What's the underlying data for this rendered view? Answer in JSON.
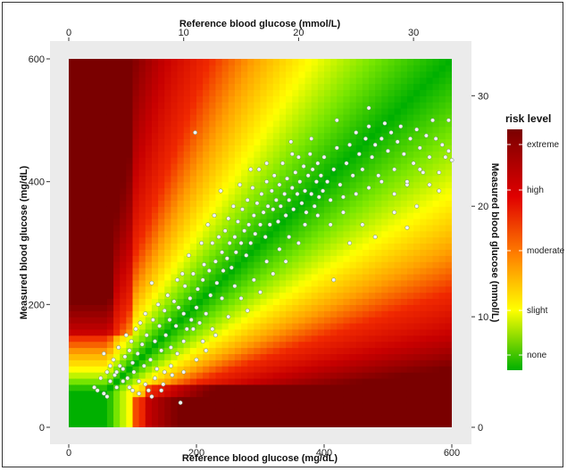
{
  "chart_data": {
    "type": "scatter",
    "title": "",
    "xlabel": "Reference blood glucose (mg/dL)",
    "ylabel": "Measured blood glucose (mg/dL)",
    "x2label": "Reference blood glucose (mmol/L)",
    "y2label": "Measured blood glucose (mmol/L)",
    "xlim": [
      0,
      600
    ],
    "ylim": [
      0,
      600
    ],
    "x_ticks": [
      0,
      200,
      400,
      600
    ],
    "y_ticks": [
      0,
      200,
      400,
      600
    ],
    "x2_ticks": [
      0,
      10,
      20,
      30
    ],
    "y2_ticks": [
      0,
      10,
      20,
      30
    ],
    "grid": false,
    "background": "surveillance error grid risk map (green = none, red = high, dark red = extreme)",
    "legend": {
      "title": "risk level",
      "position": "right",
      "labels": [
        "extreme",
        "high",
        "moderate",
        "slight",
        "none"
      ],
      "colors": [
        "#7a0000",
        "#e00000",
        "#ff8000",
        "#ffff00",
        "#00b000"
      ]
    },
    "point_color": "#f2f2f2",
    "points": [
      [
        40,
        65
      ],
      [
        45,
        60
      ],
      [
        50,
        80
      ],
      [
        55,
        120
      ],
      [
        55,
        55
      ],
      [
        60,
        50
      ],
      [
        60,
        90
      ],
      [
        65,
        75
      ],
      [
        70,
        110
      ],
      [
        72,
        85
      ],
      [
        75,
        65
      ],
      [
        78,
        130
      ],
      [
        80,
        100
      ],
      [
        85,
        95
      ],
      [
        88,
        115
      ],
      [
        90,
        150
      ],
      [
        92,
        80
      ],
      [
        95,
        125
      ],
      [
        98,
        140
      ],
      [
        100,
        105
      ],
      [
        100,
        60
      ],
      [
        102,
        90
      ],
      [
        105,
        160
      ],
      [
        108,
        120
      ],
      [
        110,
        75
      ],
      [
        112,
        170
      ],
      [
        115,
        135
      ],
      [
        118,
        100
      ],
      [
        120,
        185
      ],
      [
        122,
        150
      ],
      [
        125,
        60
      ],
      [
        128,
        110
      ],
      [
        130,
        235
      ],
      [
        132,
        175
      ],
      [
        135,
        140
      ],
      [
        138,
        95
      ],
      [
        140,
        200
      ],
      [
        142,
        165
      ],
      [
        145,
        125
      ],
      [
        148,
        70
      ],
      [
        150,
        190
      ],
      [
        152,
        150
      ],
      [
        155,
        215
      ],
      [
        158,
        175
      ],
      [
        160,
        130
      ],
      [
        162,
        85
      ],
      [
        165,
        205
      ],
      [
        168,
        165
      ],
      [
        170,
        240
      ],
      [
        172,
        195
      ],
      [
        175,
        40
      ],
      [
        178,
        250
      ],
      [
        180,
        185
      ],
      [
        182,
        230
      ],
      [
        185,
        160
      ],
      [
        188,
        280
      ],
      [
        190,
        210
      ],
      [
        192,
        175
      ],
      [
        195,
        250
      ],
      [
        198,
        480
      ],
      [
        200,
        195
      ],
      [
        202,
        225
      ],
      [
        205,
        170
      ],
      [
        208,
        300
      ],
      [
        210,
        240
      ],
      [
        212,
        265
      ],
      [
        215,
        185
      ],
      [
        218,
        330
      ],
      [
        220,
        255
      ],
      [
        222,
        215
      ],
      [
        225,
        300
      ],
      [
        228,
        345
      ],
      [
        230,
        270
      ],
      [
        232,
        235
      ],
      [
        235,
        310
      ],
      [
        238,
        385
      ],
      [
        240,
        285
      ],
      [
        242,
        255
      ],
      [
        245,
        320
      ],
      [
        248,
        275
      ],
      [
        250,
        340
      ],
      [
        252,
        300
      ],
      [
        255,
        260
      ],
      [
        258,
        360
      ],
      [
        260,
        310
      ],
      [
        262,
        285
      ],
      [
        265,
        335
      ],
      [
        268,
        395
      ],
      [
        270,
        300
      ],
      [
        272,
        355
      ],
      [
        275,
        320
      ],
      [
        278,
        280
      ],
      [
        280,
        370
      ],
      [
        282,
        330
      ],
      [
        285,
        300
      ],
      [
        288,
        390
      ],
      [
        290,
        345
      ],
      [
        292,
        315
      ],
      [
        295,
        365
      ],
      [
        298,
        420
      ],
      [
        300,
        330
      ],
      [
        302,
        380
      ],
      [
        305,
        350
      ],
      [
        308,
        310
      ],
      [
        310,
        400
      ],
      [
        312,
        360
      ],
      [
        315,
        330
      ],
      [
        318,
        385
      ],
      [
        320,
        355
      ],
      [
        322,
        410
      ],
      [
        325,
        370
      ],
      [
        328,
        335
      ],
      [
        330,
        395
      ],
      [
        332,
        360
      ],
      [
        335,
        430
      ],
      [
        338,
        380
      ],
      [
        340,
        345
      ],
      [
        342,
        405
      ],
      [
        345,
        370
      ],
      [
        348,
        465
      ],
      [
        350,
        390
      ],
      [
        352,
        355
      ],
      [
        355,
        415
      ],
      [
        358,
        380
      ],
      [
        360,
        440
      ],
      [
        362,
        400
      ],
      [
        365,
        365
      ],
      [
        368,
        425
      ],
      [
        370,
        385
      ],
      [
        372,
        350
      ],
      [
        375,
        410
      ],
      [
        378,
        445
      ],
      [
        380,
        380
      ],
      [
        382,
        420
      ],
      [
        385,
        360
      ],
      [
        388,
        400
      ],
      [
        390,
        430
      ],
      [
        392,
        375
      ],
      [
        395,
        410
      ],
      [
        398,
        385
      ],
      [
        400,
        440
      ],
      [
        405,
        400
      ],
      [
        410,
        370
      ],
      [
        415,
        420
      ],
      [
        420,
        455
      ],
      [
        425,
        395
      ],
      [
        430,
        375
      ],
      [
        435,
        430
      ],
      [
        440,
        460
      ],
      [
        445,
        410
      ],
      [
        450,
        480
      ],
      [
        455,
        445
      ],
      [
        460,
        420
      ],
      [
        465,
        470
      ],
      [
        470,
        490
      ],
      [
        475,
        440
      ],
      [
        480,
        460
      ],
      [
        485,
        410
      ],
      [
        490,
        470
      ],
      [
        495,
        495
      ],
      [
        500,
        450
      ],
      [
        505,
        480
      ],
      [
        510,
        420
      ],
      [
        515,
        465
      ],
      [
        520,
        490
      ],
      [
        525,
        445
      ],
      [
        530,
        395
      ],
      [
        535,
        470
      ],
      [
        540,
        430
      ],
      [
        545,
        485
      ],
      [
        550,
        455
      ],
      [
        555,
        415
      ],
      [
        560,
        475
      ],
      [
        565,
        440
      ],
      [
        570,
        500
      ],
      [
        575,
        470
      ],
      [
        580,
        415
      ],
      [
        585,
        460
      ],
      [
        590,
        440
      ],
      [
        595,
        450
      ],
      [
        600,
        435
      ],
      [
        415,
        240
      ],
      [
        440,
        300
      ],
      [
        460,
        330
      ],
      [
        480,
        310
      ],
      [
        510,
        350
      ],
      [
        530,
        325
      ],
      [
        545,
        360
      ],
      [
        280,
        190
      ],
      [
        300,
        220
      ],
      [
        320,
        250
      ],
      [
        340,
        270
      ],
      [
        360,
        300
      ],
      [
        260,
        230
      ],
      [
        240,
        210
      ],
      [
        195,
        160
      ],
      [
        210,
        140
      ],
      [
        225,
        160
      ],
      [
        160,
        100
      ],
      [
        170,
        120
      ],
      [
        180,
        140
      ],
      [
        150,
        90
      ],
      [
        135,
        80
      ],
      [
        120,
        70
      ],
      [
        110,
        55
      ],
      [
        95,
        65
      ],
      [
        85,
        75
      ],
      [
        75,
        90
      ],
      [
        65,
        100
      ],
      [
        130,
        50
      ],
      [
        145,
        60
      ],
      [
        180,
        90
      ],
      [
        200,
        110
      ],
      [
        215,
        125
      ],
      [
        230,
        150
      ],
      [
        250,
        180
      ],
      [
        270,
        210
      ],
      [
        290,
        240
      ],
      [
        310,
        270
      ],
      [
        330,
        290
      ],
      [
        345,
        310
      ],
      [
        370,
        330
      ],
      [
        390,
        345
      ],
      [
        410,
        330
      ],
      [
        430,
        350
      ],
      [
        450,
        380
      ],
      [
        470,
        390
      ],
      [
        490,
        400
      ],
      [
        510,
        380
      ],
      [
        530,
        400
      ],
      [
        550,
        420
      ],
      [
        565,
        395
      ],
      [
        580,
        385
      ],
      [
        595,
        500
      ],
      [
        470,
        520
      ],
      [
        420,
        500
      ],
      [
        380,
        470
      ],
      [
        350,
        445
      ],
      [
        310,
        430
      ],
      [
        285,
        420
      ]
    ]
  }
}
